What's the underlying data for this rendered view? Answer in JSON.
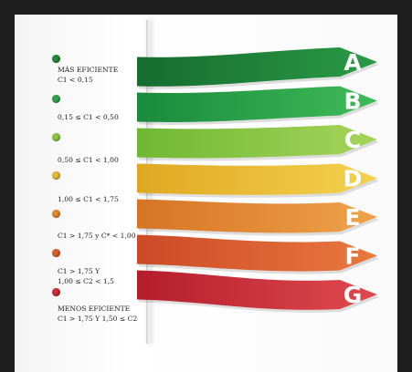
{
  "legend": [
    {
      "line1": "MÁS EFICIENTE",
      "line2": "C1 < 0,15",
      "color": "#1f8a3a"
    },
    {
      "line1": "0,15 ≤ C1 < 0,50",
      "line2": "",
      "color": "#2fa34a"
    },
    {
      "line1": "0,50 ≤ C1 < 1,00",
      "line2": "",
      "color": "#8cc63f"
    },
    {
      "line1": "1,00 ≤ C1 < 1,75",
      "line2": "",
      "color": "#e8b934"
    },
    {
      "line1": "C1 > 1,75 y C* < 1,00",
      "line2": "",
      "color": "#e0892e"
    },
    {
      "line1": "C1 > 1,75 Y",
      "line2": "1,00 ≤ C2 < 1,5",
      "color": "#d9602b"
    },
    {
      "line1": "MENOS EFICIENTE",
      "line2": "C1 > 1,75 Y 1,50 ≤ C2",
      "color": "#cc2b3a"
    }
  ],
  "bands": [
    {
      "letter": "A",
      "color_start": "#156c2f",
      "color_end": "#2a9a45"
    },
    {
      "letter": "B",
      "color_start": "#1a8a3c",
      "color_end": "#3fbb58"
    },
    {
      "letter": "C",
      "color_start": "#6fb833",
      "color_end": "#a6d45a"
    },
    {
      "letter": "D",
      "color_start": "#e0a822",
      "color_end": "#f4d24e"
    },
    {
      "letter": "E",
      "color_start": "#d67424",
      "color_end": "#efa24a"
    },
    {
      "letter": "F",
      "color_start": "#cc4a26",
      "color_end": "#e9793f"
    },
    {
      "letter": "G",
      "color_start": "#b51d2c",
      "color_end": "#e04a4e"
    }
  ]
}
